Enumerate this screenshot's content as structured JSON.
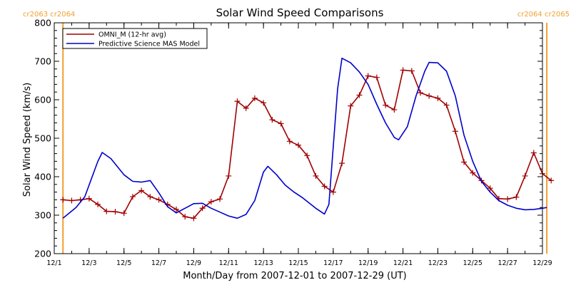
{
  "chart_data": {
    "type": "line",
    "title": "Solar Wind Speed Comparisons",
    "xlabel": "Month/Day from 2007-12-01 to 2007-12-29 (UT)",
    "ylabel": "Solar Wind Speed (km/s)",
    "xlim": [
      "12/1",
      "12/29"
    ],
    "x_tick_labels": [
      "12/1",
      "12/3",
      "12/5",
      "12/7",
      "12/9",
      "12/11",
      "12/13",
      "12/15",
      "12/17",
      "12/19",
      "12/21",
      "12/23",
      "12/25",
      "12/27",
      "12/29"
    ],
    "ylim": [
      200,
      800
    ],
    "y_ticks": [
      200,
      300,
      400,
      500,
      600,
      700,
      800
    ],
    "grid": false,
    "legend_position": "top-left",
    "series": [
      {
        "name": "OMNI_M (12-hr avg)",
        "color": "#a00000",
        "marker": "plus",
        "points": [
          [
            "12/1 12:00",
            340
          ],
          [
            "12/2 00:00",
            338
          ],
          [
            "12/2 12:00",
            340
          ],
          [
            "12/3 00:00",
            343
          ],
          [
            "12/3 12:00",
            328
          ],
          [
            "12/4 00:00",
            310
          ],
          [
            "12/4 12:00",
            309
          ],
          [
            "12/5 00:00",
            305
          ],
          [
            "12/5 12:00",
            348
          ],
          [
            "12/6 00:00",
            364
          ],
          [
            "12/6 12:00",
            348
          ],
          [
            "12/7 00:00",
            340
          ],
          [
            "12/7 12:00",
            328
          ],
          [
            "12/8 00:00",
            315
          ],
          [
            "12/8 12:00",
            296
          ],
          [
            "12/9 00:00",
            292
          ],
          [
            "12/9 12:00",
            318
          ],
          [
            "12/10 00:00",
            335
          ],
          [
            "12/10 12:00",
            342
          ],
          [
            "12/11 00:00",
            402
          ],
          [
            "12/11 12:00",
            596
          ],
          [
            "12/12 00:00",
            578
          ],
          [
            "12/12 12:00",
            604
          ],
          [
            "12/13 00:00",
            592
          ],
          [
            "12/13 12:00",
            548
          ],
          [
            "12/14 00:00",
            538
          ],
          [
            "12/14 12:00",
            492
          ],
          [
            "12/15 00:00",
            482
          ],
          [
            "12/15 12:00",
            455
          ],
          [
            "12/16 00:00",
            402
          ],
          [
            "12/16 12:00",
            375
          ],
          [
            "12/17 00:00",
            360
          ],
          [
            "12/17 12:00",
            435
          ],
          [
            "12/18 00:00",
            584
          ],
          [
            "12/18 12:00",
            612
          ],
          [
            "12/19 00:00",
            662
          ],
          [
            "12/19 12:00",
            658
          ],
          [
            "12/20 00:00",
            586
          ],
          [
            "12/20 12:00",
            574
          ],
          [
            "12/21 00:00",
            677
          ],
          [
            "12/21 12:00",
            675
          ],
          [
            "12/22 00:00",
            618
          ],
          [
            "12/22 12:00",
            610
          ],
          [
            "12/23 00:00",
            604
          ],
          [
            "12/23 12:00",
            586
          ],
          [
            "12/24 00:00",
            518
          ],
          [
            "12/24 12:00",
            438
          ],
          [
            "12/25 00:00",
            410
          ],
          [
            "12/25 12:00",
            390
          ],
          [
            "12/26 00:00",
            370
          ],
          [
            "12/26 12:00",
            343
          ],
          [
            "12/27 00:00",
            342
          ],
          [
            "12/27 12:00",
            347
          ],
          [
            "12/28 00:00",
            402
          ],
          [
            "12/28 12:00",
            462
          ],
          [
            "12/29 00:00",
            408
          ],
          [
            "12/29 12:00",
            390
          ]
        ]
      },
      {
        "name": "Predictive Science MAS Model",
        "color": "#0000cc",
        "marker": "none",
        "points": [
          [
            "12/1 12:00",
            292
          ],
          [
            "12/2 06:00",
            320
          ],
          [
            "12/2 18:00",
            348
          ],
          [
            "12/3 12:00",
            440
          ],
          [
            "12/3 18:00",
            463
          ],
          [
            "12/4 06:00",
            447
          ],
          [
            "12/5 00:00",
            405
          ],
          [
            "12/5 12:00",
            388
          ],
          [
            "12/6 00:00",
            386
          ],
          [
            "12/6 12:00",
            390
          ],
          [
            "12/7 00:00",
            358
          ],
          [
            "12/7 12:00",
            322
          ],
          [
            "12/8 00:00",
            306
          ],
          [
            "12/8 12:00",
            318
          ],
          [
            "12/9 00:00",
            330
          ],
          [
            "12/9 12:00",
            331
          ],
          [
            "12/10 00:00",
            318
          ],
          [
            "12/10 12:00",
            308
          ],
          [
            "12/11 00:00",
            298
          ],
          [
            "12/11 12:00",
            292
          ],
          [
            "12/12 00:00",
            302
          ],
          [
            "12/12 12:00",
            338
          ],
          [
            "12/13 00:00",
            412
          ],
          [
            "12/13 06:00",
            427
          ],
          [
            "12/13 18:00",
            405
          ],
          [
            "12/14 06:00",
            378
          ],
          [
            "12/14 18:00",
            360
          ],
          [
            "12/15 06:00",
            345
          ],
          [
            "12/16 00:00",
            318
          ],
          [
            "12/16 12:00",
            303
          ],
          [
            "12/16 18:00",
            328
          ],
          [
            "12/17 06:00",
            628
          ],
          [
            "12/17 12:00",
            708
          ],
          [
            "12/18 00:00",
            696
          ],
          [
            "12/18 12:00",
            672
          ],
          [
            "12/19 00:00",
            640
          ],
          [
            "12/19 12:00",
            588
          ],
          [
            "12/20 00:00",
            540
          ],
          [
            "12/20 12:00",
            502
          ],
          [
            "12/20 18:00",
            496
          ],
          [
            "12/21 06:00",
            530
          ],
          [
            "12/21 18:00",
            610
          ],
          [
            "12/22 06:00",
            674
          ],
          [
            "12/22 12:00",
            697
          ],
          [
            "12/23 00:00",
            696
          ],
          [
            "12/23 12:00",
            674
          ],
          [
            "12/24 00:00",
            610
          ],
          [
            "12/24 12:00",
            508
          ],
          [
            "12/25 00:00",
            440
          ],
          [
            "12/25 12:00",
            388
          ],
          [
            "12/26 00:00",
            360
          ],
          [
            "12/26 12:00",
            338
          ],
          [
            "12/27 00:00",
            326
          ],
          [
            "12/27 12:00",
            318
          ],
          [
            "12/28 00:00",
            314
          ],
          [
            "12/28 12:00",
            315
          ],
          [
            "12/29 00:00",
            318
          ],
          [
            "12/29 06:00",
            320
          ]
        ]
      }
    ],
    "markers": [
      {
        "date": "12/1 12:00",
        "labels": [
          "cr2063",
          "cr2064"
        ],
        "color": "#f0a030"
      },
      {
        "date": "12/29 06:00",
        "labels": [
          "cr2064",
          "cr2065"
        ],
        "color": "#f0a030"
      }
    ]
  }
}
